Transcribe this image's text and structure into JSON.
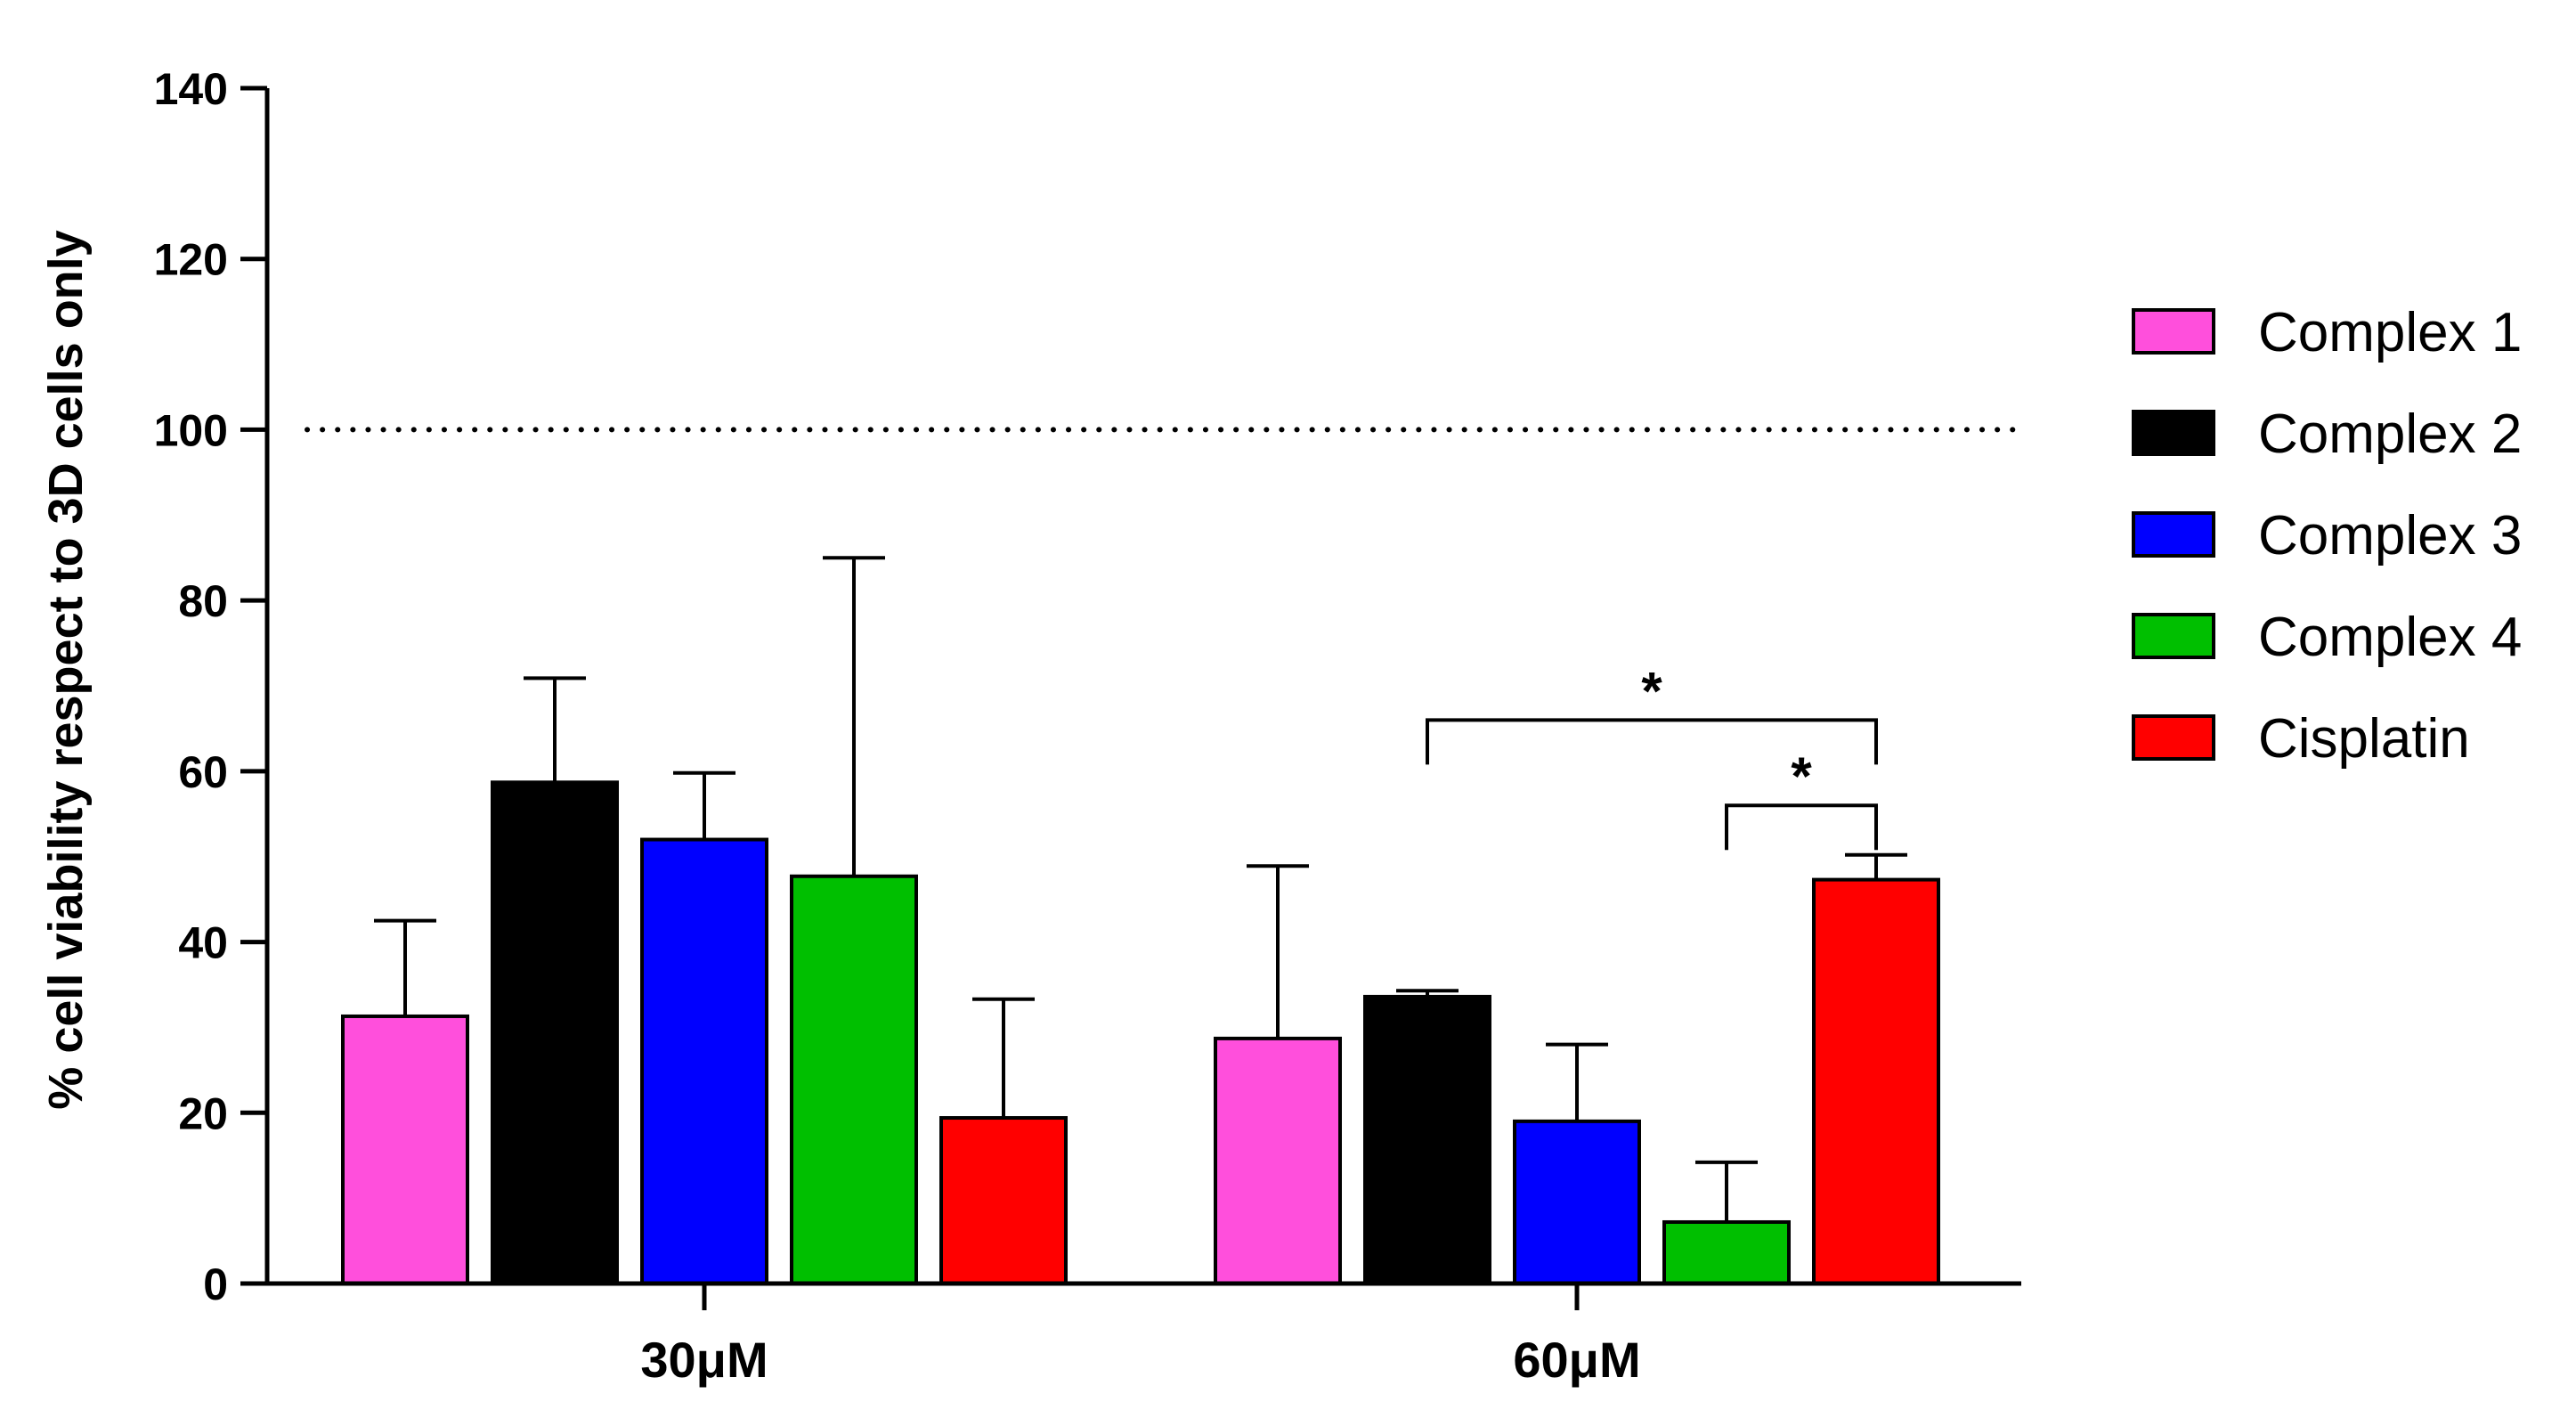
{
  "chart_data": {
    "type": "bar",
    "title": "",
    "xlabel": "",
    "ylabel": "% cell viability respect to 3D cells only",
    "ylim": [
      0,
      140
    ],
    "yticks": [
      0,
      20,
      40,
      60,
      80,
      100,
      120,
      140
    ],
    "grid": false,
    "legend_position": "right",
    "categories": [
      "30μM",
      "60μM"
    ],
    "series": [
      {
        "name": "Complex 1",
        "color": "#ff4fdc",
        "values": [
          31.3,
          28.7
        ],
        "errors": [
          11.2,
          20.2
        ]
      },
      {
        "name": "Complex 2",
        "color": "#000000",
        "values": [
          58.7,
          33.6
        ],
        "errors": [
          12.2,
          0.7
        ]
      },
      {
        "name": "Complex 3",
        "color": "#0000ff",
        "values": [
          52.0,
          19.0
        ],
        "errors": [
          7.8,
          9.0
        ]
      },
      {
        "name": "Complex 4",
        "color": "#00bf00",
        "values": [
          47.7,
          7.2
        ],
        "errors": [
          37.3,
          7.0
        ]
      },
      {
        "name": "Cisplatin",
        "color": "#ff0000",
        "values": [
          19.4,
          47.3
        ],
        "errors": [
          13.9,
          2.9
        ]
      }
    ],
    "reference_line": {
      "value": 100,
      "style": "dotted"
    },
    "significance": [
      {
        "category": "60μM",
        "from": "Complex 2",
        "to": "Cisplatin",
        "label": "*",
        "level": 66
      },
      {
        "category": "60μM",
        "from": "Complex 4",
        "to": "Cisplatin",
        "label": "*",
        "level": 56
      }
    ]
  }
}
